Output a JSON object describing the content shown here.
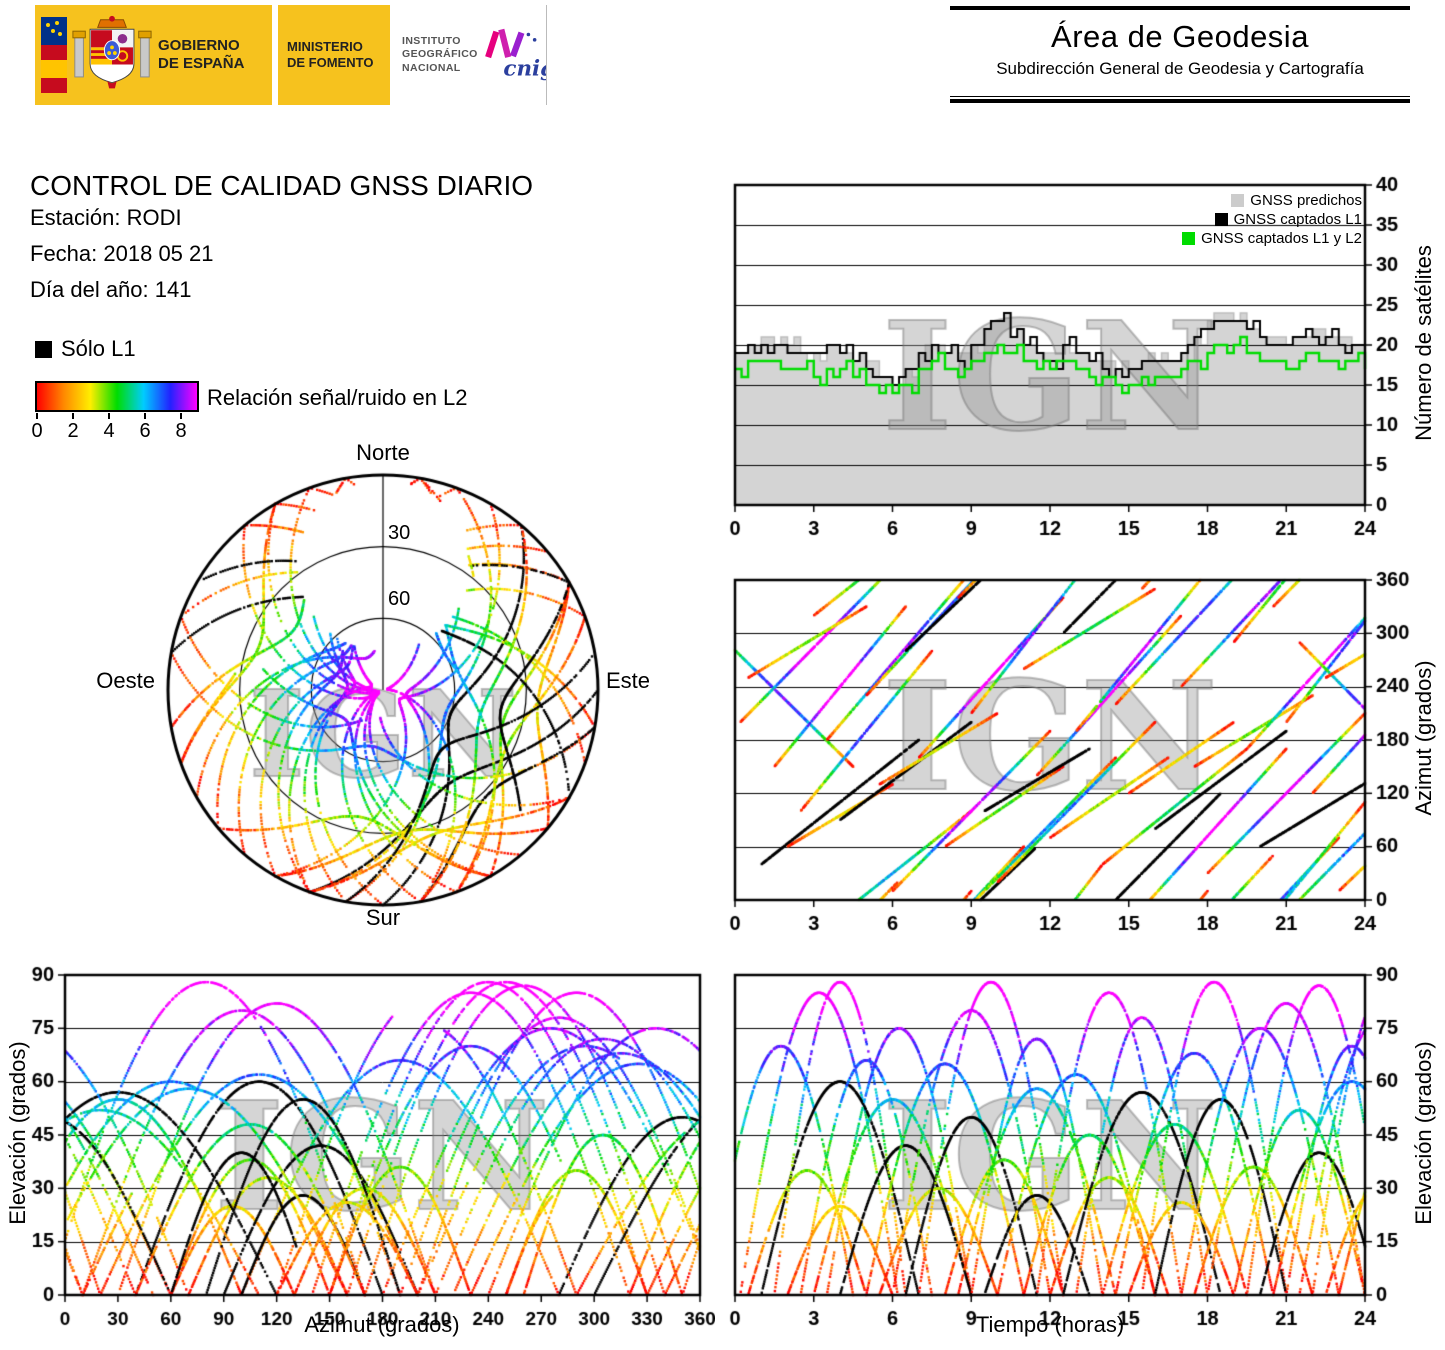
{
  "watermark": "IGN",
  "header": {
    "gobierno_line1": "GOBIERNO",
    "gobierno_line2": "DE ESPAÑA",
    "ministerio_line1": "MINISTERIO",
    "ministerio_line2": "DE FOMENTO",
    "instituto_line1": "INSTITUTO",
    "instituto_line2": "GEOGRÁFICO",
    "instituto_line3": "NACIONAL",
    "cnig": "cnig",
    "area_title": "Área de Geodesia",
    "area_subtitle": "Subdirección General de Geodesia y Cartografía"
  },
  "report": {
    "title": "CONTROL DE CALIDAD GNSS DIARIO",
    "station_label": "Estación:",
    "station_value": "RODI",
    "date_label": "Fecha:",
    "date_value": "2018 05 21",
    "doy_label": "Día del año:",
    "doy_value": "141"
  },
  "legend": {
    "solo_l1": "Sólo L1",
    "snr_label": "Relación señal/ruido en L2",
    "snr_ticks": [
      "0",
      "2",
      "4",
      "6",
      "8"
    ],
    "snr_colormap": [
      "#ff0000",
      "#ff8800",
      "#ffee00",
      "#00dd00",
      "#00ccff",
      "#2222ff",
      "#ff00ff"
    ]
  },
  "skyplot": {
    "north": "Norte",
    "south": "Sur",
    "east": "Este",
    "west": "Oeste",
    "ring_labels": [
      "30",
      "60"
    ],
    "ring_elevations": [
      30,
      60
    ]
  },
  "satellite_passes": {
    "fields": [
      "t0_h",
      "duration_h",
      "el_max_deg",
      "az_start_deg",
      "az_end_deg",
      "l1_only"
    ],
    "passes": [
      [
        -1.0,
        5.5,
        70,
        310,
        150,
        0
      ],
      [
        0.2,
        6.0,
        85,
        200,
        380,
        0
      ],
      [
        0.5,
        4.5,
        35,
        250,
        330,
        0
      ],
      [
        1.0,
        6.0,
        60,
        40,
        180,
        1
      ],
      [
        1.5,
        5.0,
        88,
        150,
        330,
        0
      ],
      [
        2.0,
        4.0,
        25,
        60,
        130,
        0
      ],
      [
        2.5,
        5.0,
        66,
        100,
        280,
        0
      ],
      [
        3.0,
        6.0,
        55,
        320,
        460,
        0
      ],
      [
        3.5,
        5.5,
        75,
        180,
        370,
        0
      ],
      [
        4.0,
        5.0,
        42,
        90,
        200,
        1
      ],
      [
        5.0,
        6.0,
        65,
        230,
        420,
        0
      ],
      [
        5.5,
        4.5,
        30,
        130,
        210,
        0
      ],
      [
        6.0,
        6.0,
        80,
        10,
        190,
        0
      ],
      [
        6.5,
        5.0,
        50,
        280,
        420,
        1
      ],
      [
        7.0,
        5.5,
        88,
        160,
        340,
        0
      ],
      [
        8.0,
        4.5,
        38,
        60,
        150,
        0
      ],
      [
        8.5,
        6.0,
        58,
        340,
        520,
        0
      ],
      [
        9.0,
        5.0,
        72,
        210,
        400,
        0
      ],
      [
        9.5,
        4.0,
        28,
        100,
        170,
        1
      ],
      [
        10.0,
        6.0,
        62,
        20,
        200,
        0
      ],
      [
        11.0,
        5.0,
        45,
        260,
        350,
        0
      ],
      [
        11.5,
        5.5,
        85,
        140,
        320,
        0
      ],
      [
        12.0,
        4.5,
        33,
        70,
        160,
        0
      ],
      [
        12.5,
        6.0,
        57,
        300,
        480,
        1
      ],
      [
        13.0,
        5.0,
        78,
        190,
        370,
        0
      ],
      [
        14.0,
        5.5,
        48,
        40,
        170,
        0
      ],
      [
        14.5,
        6.0,
        68,
        220,
        410,
        0
      ],
      [
        15.0,
        4.0,
        26,
        120,
        200,
        0
      ],
      [
        15.5,
        5.5,
        88,
        350,
        530,
        0
      ],
      [
        16.0,
        5.0,
        55,
        80,
        190,
        1
      ],
      [
        17.0,
        6.0,
        75,
        240,
        430,
        0
      ],
      [
        17.5,
        4.5,
        36,
        150,
        230,
        0
      ],
      [
        18.0,
        6.0,
        82,
        30,
        210,
        0
      ],
      [
        19.0,
        5.0,
        52,
        290,
        470,
        0
      ],
      [
        19.5,
        5.5,
        87,
        170,
        350,
        0
      ],
      [
        20.0,
        4.5,
        40,
        60,
        140,
        1
      ],
      [
        20.5,
        6.0,
        60,
        330,
        510,
        0
      ],
      [
        21.0,
        5.0,
        70,
        200,
        390,
        0
      ],
      [
        21.5,
        6.0,
        77,
        290,
        110,
        0
      ],
      [
        22.0,
        5.5,
        86,
        120,
        300,
        0
      ],
      [
        22.5,
        4.0,
        30,
        250,
        320,
        0
      ],
      [
        23.0,
        6.0,
        58,
        10,
        180,
        0
      ]
    ]
  },
  "chart_data": [
    {
      "id": "satellite_count",
      "type": "line",
      "title": "",
      "xlabel": "",
      "ylabel": "Número de satélites",
      "xlim": [
        0,
        24
      ],
      "ylim": [
        0,
        40
      ],
      "xticks": [
        0,
        3,
        6,
        9,
        12,
        15,
        18,
        21,
        24
      ],
      "yticks": [
        0,
        5,
        10,
        15,
        20,
        25,
        30,
        35,
        40
      ],
      "x_step_h": 0.5,
      "legend": [
        {
          "label": "GNSS predichos",
          "color": "#cccccc"
        },
        {
          "label": "GNSS captados L1",
          "color": "#000000"
        },
        {
          "label": "GNSS captados L1 y L2",
          "color": "#00dc00"
        }
      ],
      "series": [
        {
          "name": "GNSS predichos",
          "color": "#d4d4d4",
          "fill": true,
          "values": [
            19,
            20,
            21,
            20,
            20,
            19,
            19,
            20,
            19,
            18,
            18,
            16,
            15,
            17,
            19,
            20,
            19,
            19,
            20,
            22,
            23,
            21,
            20,
            19,
            19,
            20,
            19,
            18,
            18,
            17,
            17,
            18,
            18,
            18,
            19,
            21,
            23,
            24,
            23,
            22,
            21,
            21,
            20,
            21,
            22,
            21,
            21,
            20,
            20
          ]
        },
        {
          "name": "GNSS captados L1",
          "color": "#000000",
          "fill": false,
          "values": [
            19,
            20,
            20,
            20,
            19,
            19,
            19,
            20,
            19,
            18,
            17,
            16,
            15,
            17,
            19,
            20,
            19,
            18,
            20,
            22,
            23,
            21,
            20,
            19,
            18,
            20,
            19,
            18,
            17,
            17,
            17,
            18,
            18,
            18,
            19,
            21,
            22,
            23,
            23,
            22,
            21,
            20,
            20,
            21,
            21,
            21,
            20,
            20,
            20
          ]
        },
        {
          "name": "GNSS captados L1 y L2",
          "color": "#00dc00",
          "fill": false,
          "values": [
            17,
            18,
            18,
            18,
            17,
            17,
            16,
            17,
            17,
            16,
            15,
            14,
            14,
            15,
            17,
            18,
            17,
            16,
            18,
            19,
            20,
            19,
            18,
            17,
            17,
            18,
            17,
            16,
            16,
            15,
            15,
            16,
            16,
            16,
            17,
            18,
            19,
            20,
            20,
            19,
            18,
            18,
            17,
            18,
            19,
            18,
            17,
            18,
            17
          ]
        }
      ]
    },
    {
      "id": "azimuth_vs_time",
      "type": "scatter",
      "xlabel": "",
      "ylabel": "Azimut (grados)",
      "xlim": [
        0,
        24
      ],
      "ylim": [
        0,
        360
      ],
      "xticks": [
        0,
        3,
        6,
        9,
        12,
        15,
        18,
        21,
        24
      ],
      "yticks": [
        0,
        60,
        120,
        180,
        240,
        300,
        360
      ],
      "series_ref": "satellite_passes"
    },
    {
      "id": "elevation_vs_azimuth",
      "type": "scatter",
      "xlabel": "Azimut (grados)",
      "ylabel": "Elevación (grados)",
      "xlim": [
        0,
        360
      ],
      "ylim": [
        0,
        90
      ],
      "xticks": [
        0,
        30,
        60,
        90,
        120,
        150,
        180,
        210,
        240,
        270,
        300,
        330,
        360
      ],
      "yticks": [
        0,
        15,
        30,
        45,
        60,
        75,
        90
      ],
      "series_ref": "satellite_passes"
    },
    {
      "id": "elevation_vs_time",
      "type": "scatter",
      "xlabel": "Tiempo (horas)",
      "ylabel": "Elevación (grados)",
      "xlim": [
        0,
        24
      ],
      "ylim": [
        0,
        90
      ],
      "xticks": [
        0,
        3,
        6,
        9,
        12,
        15,
        18,
        21,
        24
      ],
      "yticks": [
        0,
        15,
        30,
        45,
        60,
        75,
        90
      ],
      "series_ref": "satellite_passes"
    },
    {
      "id": "skyplot",
      "type": "scatter",
      "projection": "polar",
      "ring_elevations": [
        30,
        60
      ],
      "series_ref": "satellite_passes"
    }
  ]
}
